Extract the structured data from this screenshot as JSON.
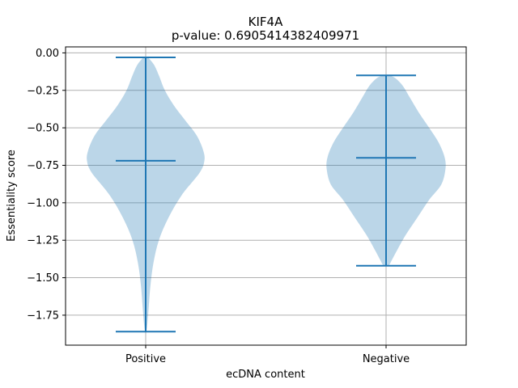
{
  "chart_data": {
    "type": "violin",
    "title": "KIF4A",
    "subtitle": "p-value: 0.6905414382409971",
    "xlabel": "ecDNA content",
    "ylabel": "Essentiality score",
    "categories": [
      "Positive",
      "Negative"
    ],
    "ylim": [
      -1.95,
      0.04
    ],
    "yticks": [
      0.0,
      -0.25,
      -0.5,
      -0.75,
      -1.0,
      -1.25,
      -1.5,
      -1.75
    ],
    "ytick_labels": [
      "0.00",
      "−0.25",
      "−0.50",
      "−0.75",
      "−1.00",
      "−1.25",
      "−1.50",
      "−1.75"
    ],
    "grid": true,
    "colors": {
      "body": "#1f77b4",
      "body_alpha": 0.3,
      "lines": "#1f77b4",
      "grid": "#b0b0b0"
    },
    "series": [
      {
        "category": "Positive",
        "min": -1.86,
        "median": -0.72,
        "max": -0.03,
        "density": [
          [
            -1.86,
            0.01
          ],
          [
            -1.8,
            0.03
          ],
          [
            -1.7,
            0.05
          ],
          [
            -1.55,
            0.08
          ],
          [
            -1.4,
            0.13
          ],
          [
            -1.25,
            0.22
          ],
          [
            -1.1,
            0.38
          ],
          [
            -0.95,
            0.6
          ],
          [
            -0.8,
            0.9
          ],
          [
            -0.72,
            0.98
          ],
          [
            -0.65,
            0.96
          ],
          [
            -0.55,
            0.85
          ],
          [
            -0.45,
            0.66
          ],
          [
            -0.35,
            0.47
          ],
          [
            -0.25,
            0.32
          ],
          [
            -0.15,
            0.22
          ],
          [
            -0.08,
            0.14
          ],
          [
            -0.03,
            0.04
          ]
        ]
      },
      {
        "category": "Negative",
        "min": -1.42,
        "median": -0.7,
        "max": -0.15,
        "density": [
          [
            -1.42,
            0.04
          ],
          [
            -1.38,
            0.1
          ],
          [
            -1.32,
            0.18
          ],
          [
            -1.22,
            0.32
          ],
          [
            -1.1,
            0.52
          ],
          [
            -0.98,
            0.72
          ],
          [
            -0.88,
            0.92
          ],
          [
            -0.78,
            0.99
          ],
          [
            -0.7,
            0.98
          ],
          [
            -0.6,
            0.88
          ],
          [
            -0.5,
            0.72
          ],
          [
            -0.4,
            0.55
          ],
          [
            -0.3,
            0.4
          ],
          [
            -0.22,
            0.28
          ],
          [
            -0.17,
            0.16
          ],
          [
            -0.15,
            0.06
          ]
        ]
      }
    ]
  }
}
